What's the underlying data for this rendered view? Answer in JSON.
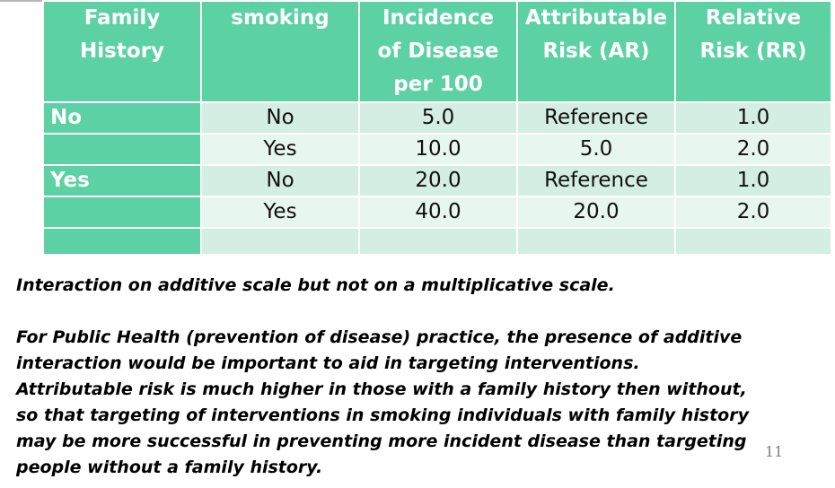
{
  "table": {
    "headers": {
      "family_history": [
        "Family",
        "History"
      ],
      "smoking": [
        "smoking"
      ],
      "incidence": [
        "Incidence",
        "of Disease",
        "per 100"
      ],
      "ar": [
        "Attributable",
        "Risk (AR)"
      ],
      "rr": [
        "Relative",
        "Risk (RR)"
      ]
    },
    "rows": [
      {
        "family_history": "No",
        "smoking": "No",
        "incidence": "5.0",
        "ar": "Reference",
        "rr": "1.0"
      },
      {
        "family_history": "",
        "smoking": "Yes",
        "incidence": "10.0",
        "ar": "5.0",
        "rr": "2.0"
      },
      {
        "family_history": "Yes",
        "smoking": "No",
        "incidence": "20.0",
        "ar": "Reference",
        "rr": "1.0"
      },
      {
        "family_history": "",
        "smoking": "Yes",
        "incidence": "40.0",
        "ar": "20.0",
        "rr": "2.0"
      },
      {
        "family_history": "",
        "smoking": "",
        "incidence": "",
        "ar": "",
        "rr": ""
      }
    ]
  },
  "notes": {
    "line1": "Interaction on additive scale but not on a multiplicative scale.",
    "para2": [
      "For Public Health (prevention of disease) practice, the presence of additive",
      "interaction would be important to aid in targeting interventions.",
      "Attributable risk is much higher in those with a family history then without,",
      "so that targeting of interventions in smoking individuals with family history",
      "may be more successful in preventing more incident disease than targeting",
      "people without a family history."
    ]
  },
  "page_number": "11"
}
